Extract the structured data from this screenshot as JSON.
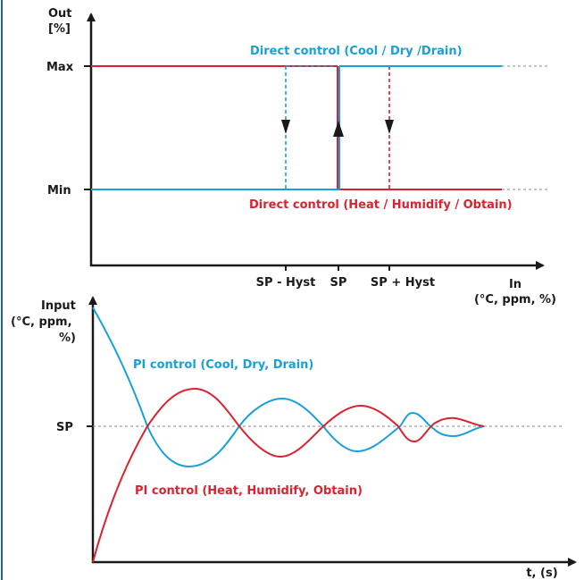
{
  "colors": {
    "cool": "#1aa0d8",
    "heat": "#d9232e",
    "axis": "#1a1a1a",
    "reference": "#888888",
    "border": "#1a5fa8"
  },
  "top_diagram": {
    "y_axis_label_line1": "Out",
    "y_axis_label_line2": "[%]",
    "x_axis_label_line1": "In",
    "x_axis_label_line2": "(°C, ppm, %)",
    "level_max": "Max",
    "level_min": "Min",
    "tick_sp_minus_hyst": "SP - Hyst",
    "tick_sp": "SP",
    "tick_sp_plus_hyst": "SP + Hyst",
    "cool_label": "Direct control (Cool / Dry /Drain)",
    "heat_label": "Direct control (Heat / Humidify / Obtain)"
  },
  "bottom_diagram": {
    "y_axis_label_line1": "Input",
    "y_axis_label_line2": "(°C, ppm,",
    "y_axis_label_line3": "%)",
    "x_axis_label": "t, (s)",
    "level_sp": "SP",
    "cool_label": "PI control (Cool, Dry, Drain)",
    "heat_label": "PI control (Heat, Humidify, Obtain)"
  }
}
